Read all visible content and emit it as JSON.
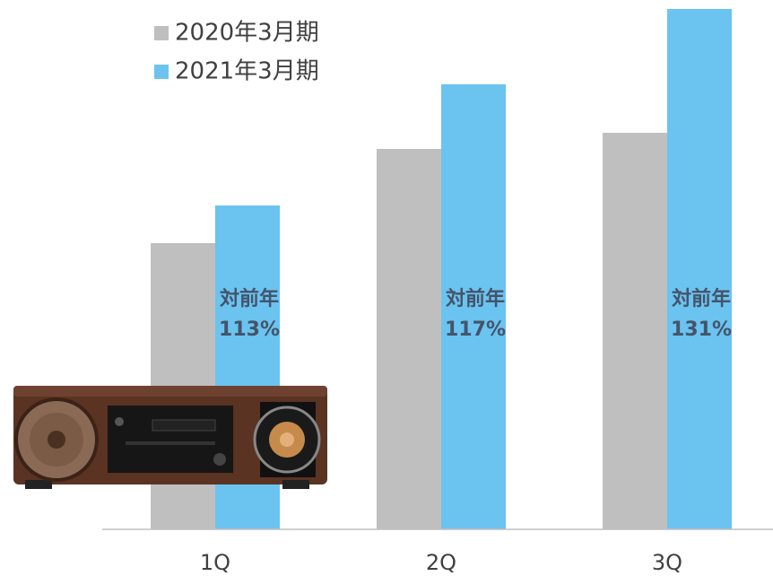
{
  "chart_data": {
    "type": "bar",
    "categories": [
      "1Q",
      "2Q",
      "3Q"
    ],
    "series": [
      {
        "name": "2020年3月期",
        "color": "#bfbfbf",
        "values": [
          319,
          424,
          442
        ]
      },
      {
        "name": "2021年3月期",
        "color": "#6bc3f0",
        "values": [
          361,
          496,
          580
        ]
      }
    ],
    "annotations": [
      [
        "対前年",
        "113%"
      ],
      [
        "対前年",
        "117%"
      ],
      [
        "対前年",
        "131%"
      ]
    ],
    "legend": "top-left"
  }
}
